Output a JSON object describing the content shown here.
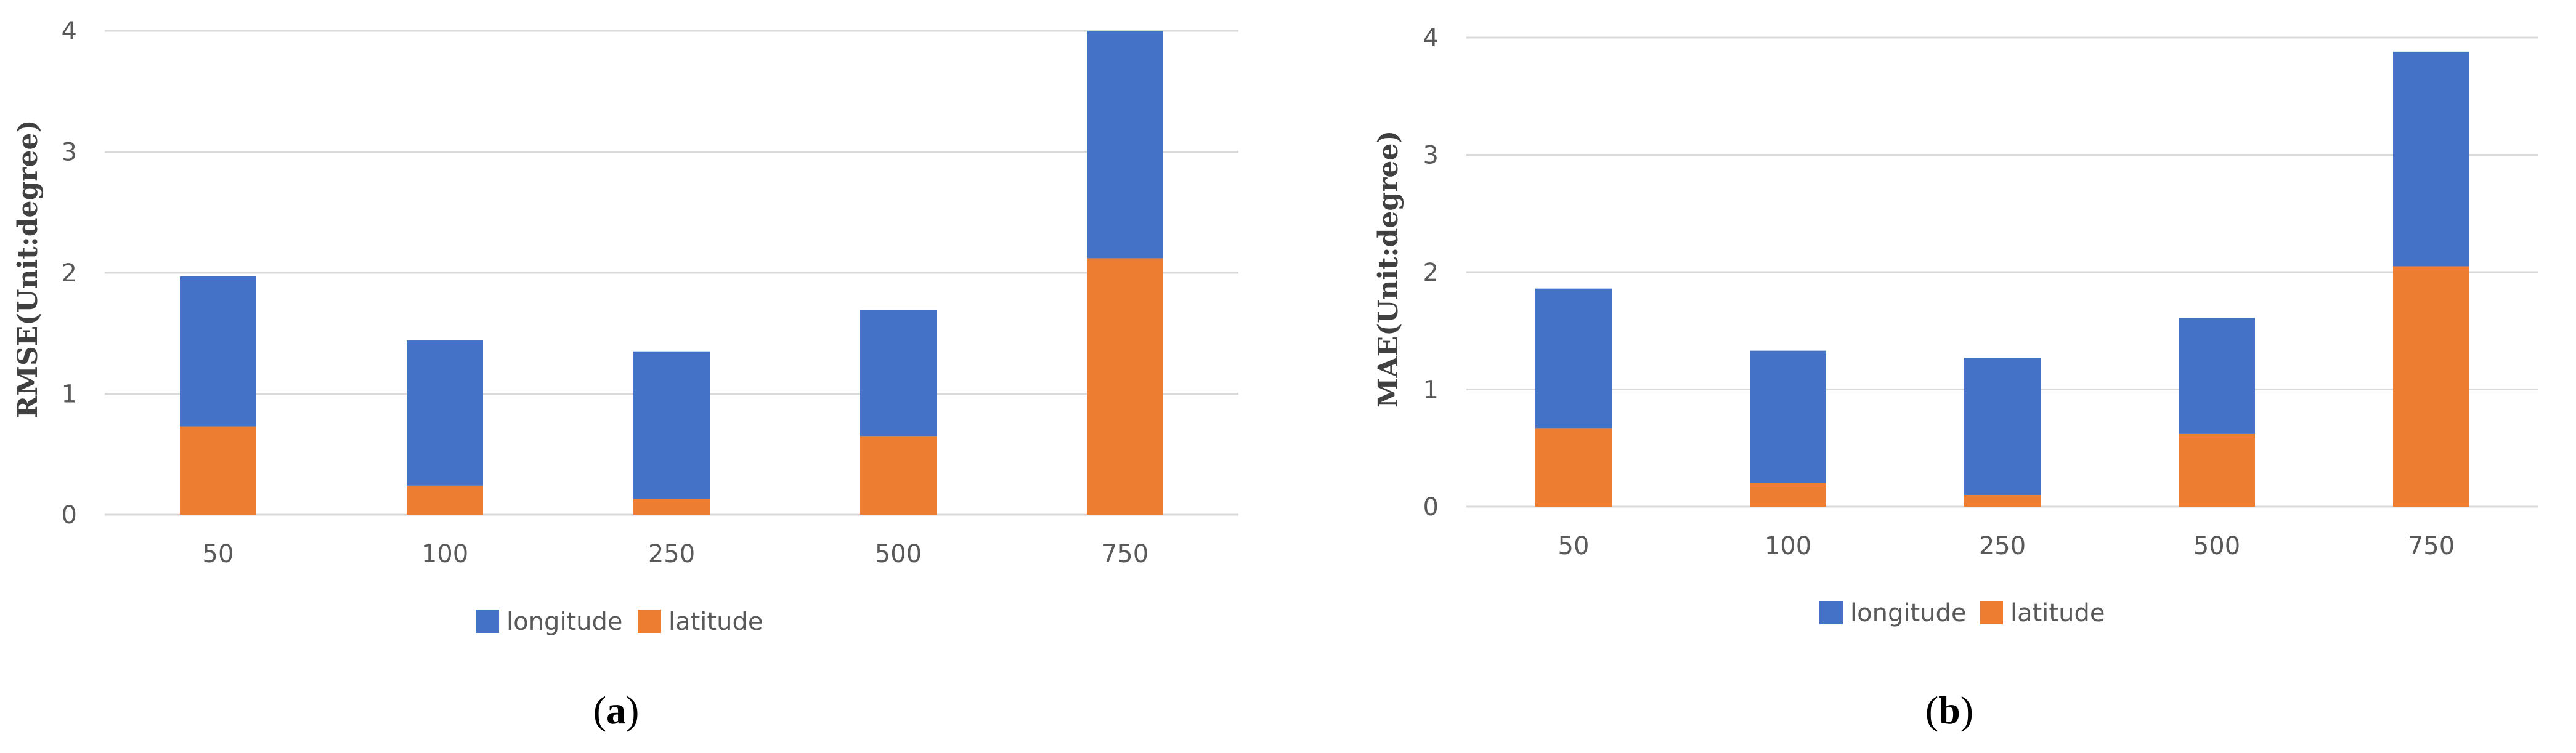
{
  "colors": {
    "longitude": "#4472c4",
    "latitude": "#ed7d31",
    "grid": "#d9d9d9",
    "tick_text": "#595959"
  },
  "chart_data": [
    {
      "type": "bar",
      "stacked": true,
      "panel_label": "a",
      "title": "",
      "xlabel": "",
      "ylabel": "RMSE(Unit:degree)",
      "ylim": [
        0,
        4
      ],
      "yticks": [
        0,
        1,
        2,
        3,
        4
      ],
      "grid": true,
      "legend_position": "bottom",
      "categories": [
        "50",
        "100",
        "250",
        "500",
        "750"
      ],
      "series": [
        {
          "name": "latitude",
          "color": "#ed7d31",
          "values": [
            0.73,
            0.24,
            0.13,
            0.65,
            2.12
          ]
        },
        {
          "name": "longitude",
          "color": "#4472c4",
          "values": [
            1.24,
            1.2,
            1.22,
            1.04,
            1.88
          ]
        }
      ],
      "legend_order": [
        "longitude",
        "latitude"
      ]
    },
    {
      "type": "bar",
      "stacked": true,
      "panel_label": "b",
      "title": "",
      "xlabel": "",
      "ylabel": "MAE(Unit:degree)",
      "ylim": [
        0,
        4
      ],
      "yticks": [
        0,
        1,
        2,
        3,
        4
      ],
      "grid": true,
      "legend_position": "bottom",
      "categories": [
        "50",
        "100",
        "250",
        "500",
        "750"
      ],
      "series": [
        {
          "name": "latitude",
          "color": "#ed7d31",
          "values": [
            0.67,
            0.2,
            0.1,
            0.62,
            2.05
          ]
        },
        {
          "name": "longitude",
          "color": "#4472c4",
          "values": [
            1.19,
            1.13,
            1.17,
            0.99,
            1.83
          ]
        }
      ],
      "legend_order": [
        "longitude",
        "latitude"
      ]
    }
  ]
}
